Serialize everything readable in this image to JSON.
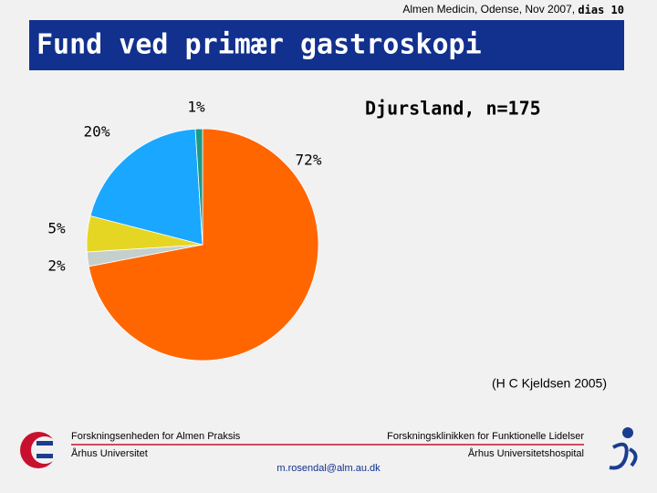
{
  "header": {
    "text": "Almen Medicin, Odense, Nov 2007, ",
    "bold": "dias 10"
  },
  "title": "Fund ved primær gastroskopi",
  "chart_data": {
    "type": "pie",
    "title": "Djursland, n=175",
    "categories": [
      null,
      null,
      null,
      null,
      null
    ],
    "values": [
      72,
      2,
      5,
      20,
      1
    ],
    "value_labels": [
      "72%",
      "2%",
      "5%",
      "20%",
      "1%"
    ],
    "colors": [
      "#ff6600",
      "#c5cfcc",
      "#e6d624",
      "#1aa7ff",
      "#1a9a8a"
    ]
  },
  "source": "(H C Kjeldsen 2005)",
  "footer": {
    "left_top": "Forskningsenheden for Almen Praksis",
    "left_bottom": "Århus Universitet",
    "right_top": "Forskningsklinikken for Funktionelle Lidelser",
    "right_bottom": "Århus Universitetshospital",
    "email": "m.rosendal@alm.au.dk"
  }
}
